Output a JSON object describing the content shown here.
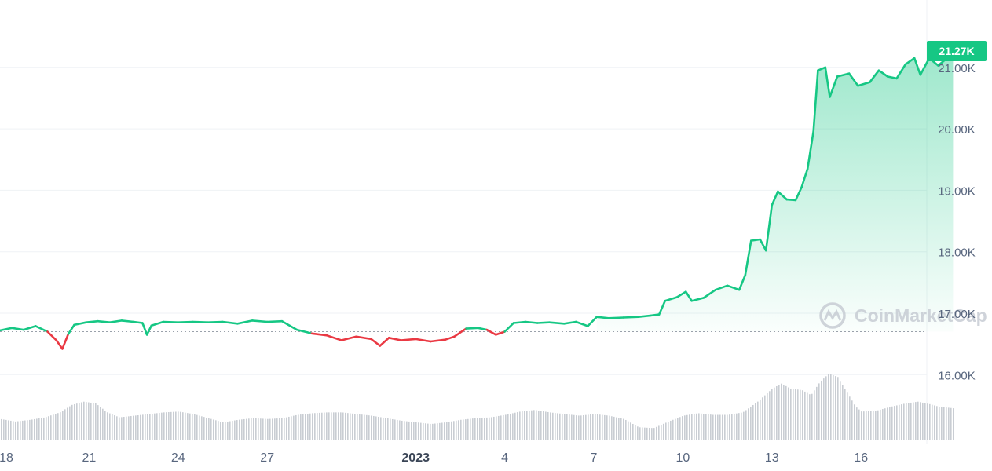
{
  "chart_data": {
    "type": "line",
    "title": "",
    "xlabel": "",
    "ylabel": "",
    "ylim": [
      15000,
      21800
    ],
    "y_ticks": [
      {
        "value": 16000,
        "label": "16.00K"
      },
      {
        "value": 17000,
        "label": "17.00K"
      },
      {
        "value": 18000,
        "label": "18.00K"
      },
      {
        "value": 19000,
        "label": "19.00K"
      },
      {
        "value": 20000,
        "label": "20.00K"
      },
      {
        "value": 21000,
        "label": "21.00K"
      }
    ],
    "x_ticks": [
      {
        "day": 0,
        "label": "18"
      },
      {
        "day": 3,
        "label": "21"
      },
      {
        "day": 6,
        "label": "24"
      },
      {
        "day": 9,
        "label": "27"
      },
      {
        "day": 14,
        "label": "2023",
        "bold": true
      },
      {
        "day": 17,
        "label": "4"
      },
      {
        "day": 20,
        "label": "7"
      },
      {
        "day": 23,
        "label": "10"
      },
      {
        "day": 26,
        "label": "13"
      },
      {
        "day": 29,
        "label": "16"
      }
    ],
    "reference_price": 16700,
    "current_price_label": "21.27K",
    "current_price": 21270,
    "colors": {
      "up": "#16c784",
      "down": "#ea3943",
      "volume": "#c9cdd3",
      "grid": "#eff2f5",
      "axis_text": "#58667e"
    },
    "series": [
      {
        "points": [
          [
            0.0,
            16720
          ],
          [
            0.4,
            16760
          ],
          [
            0.8,
            16730
          ],
          [
            1.2,
            16790
          ],
          [
            1.6,
            16700
          ],
          [
            1.9,
            16560
          ],
          [
            2.1,
            16420
          ],
          [
            2.3,
            16660
          ],
          [
            2.5,
            16810
          ],
          [
            2.9,
            16850
          ],
          [
            3.3,
            16870
          ],
          [
            3.7,
            16850
          ],
          [
            4.1,
            16880
          ],
          [
            4.5,
            16860
          ],
          [
            4.8,
            16840
          ],
          [
            4.95,
            16650
          ],
          [
            5.1,
            16800
          ],
          [
            5.5,
            16860
          ],
          [
            6.0,
            16850
          ],
          [
            6.5,
            16860
          ],
          [
            7.0,
            16850
          ],
          [
            7.5,
            16860
          ],
          [
            8.0,
            16830
          ],
          [
            8.5,
            16880
          ],
          [
            9.0,
            16860
          ],
          [
            9.5,
            16870
          ],
          [
            10.0,
            16730
          ],
          [
            10.5,
            16670
          ],
          [
            11.0,
            16640
          ],
          [
            11.5,
            16560
          ],
          [
            12.0,
            16620
          ],
          [
            12.5,
            16580
          ],
          [
            12.8,
            16470
          ],
          [
            13.1,
            16600
          ],
          [
            13.5,
            16560
          ],
          [
            14.0,
            16580
          ],
          [
            14.5,
            16540
          ],
          [
            15.0,
            16570
          ],
          [
            15.3,
            16620
          ],
          [
            15.7,
            16750
          ],
          [
            16.1,
            16760
          ],
          [
            16.4,
            16730
          ],
          [
            16.7,
            16650
          ],
          [
            17.0,
            16700
          ],
          [
            17.3,
            16840
          ],
          [
            17.7,
            16860
          ],
          [
            18.1,
            16840
          ],
          [
            18.5,
            16850
          ],
          [
            19.0,
            16830
          ],
          [
            19.4,
            16860
          ],
          [
            19.8,
            16790
          ],
          [
            20.1,
            16940
          ],
          [
            20.5,
            16920
          ],
          [
            21.0,
            16930
          ],
          [
            21.5,
            16940
          ],
          [
            21.9,
            16960
          ],
          [
            22.2,
            16980
          ],
          [
            22.4,
            17200
          ],
          [
            22.8,
            17260
          ],
          [
            23.1,
            17350
          ],
          [
            23.3,
            17200
          ],
          [
            23.7,
            17250
          ],
          [
            24.1,
            17380
          ],
          [
            24.5,
            17450
          ],
          [
            24.9,
            17380
          ],
          [
            25.1,
            17620
          ],
          [
            25.3,
            18180
          ],
          [
            25.6,
            18200
          ],
          [
            25.8,
            18020
          ],
          [
            26.0,
            18760
          ],
          [
            26.2,
            18980
          ],
          [
            26.5,
            18850
          ],
          [
            26.8,
            18840
          ],
          [
            27.0,
            19050
          ],
          [
            27.2,
            19350
          ],
          [
            27.4,
            19960
          ],
          [
            27.55,
            20950
          ],
          [
            27.8,
            21000
          ],
          [
            27.95,
            20520
          ],
          [
            28.2,
            20850
          ],
          [
            28.6,
            20900
          ],
          [
            28.9,
            20700
          ],
          [
            29.3,
            20760
          ],
          [
            29.6,
            20950
          ],
          [
            29.9,
            20850
          ],
          [
            30.2,
            20820
          ],
          [
            30.5,
            21050
          ],
          [
            30.8,
            21150
          ],
          [
            31.0,
            20880
          ],
          [
            31.3,
            21150
          ],
          [
            31.6,
            21030
          ],
          [
            31.9,
            21150
          ],
          [
            32.1,
            21270
          ]
        ]
      }
    ],
    "volume": [
      [
        0.0,
        0.25
      ],
      [
        0.5,
        0.22
      ],
      [
        1.0,
        0.24
      ],
      [
        1.5,
        0.27
      ],
      [
        2.0,
        0.33
      ],
      [
        2.4,
        0.42
      ],
      [
        2.8,
        0.46
      ],
      [
        3.2,
        0.44
      ],
      [
        3.6,
        0.33
      ],
      [
        4.0,
        0.27
      ],
      [
        4.5,
        0.29
      ],
      [
        5.0,
        0.31
      ],
      [
        5.5,
        0.33
      ],
      [
        6.0,
        0.34
      ],
      [
        6.5,
        0.31
      ],
      [
        7.0,
        0.26
      ],
      [
        7.5,
        0.21
      ],
      [
        8.0,
        0.24
      ],
      [
        8.5,
        0.26
      ],
      [
        9.0,
        0.25
      ],
      [
        9.5,
        0.26
      ],
      [
        10.0,
        0.3
      ],
      [
        10.5,
        0.32
      ],
      [
        11.0,
        0.33
      ],
      [
        11.5,
        0.33
      ],
      [
        12.0,
        0.31
      ],
      [
        12.5,
        0.29
      ],
      [
        13.0,
        0.26
      ],
      [
        13.5,
        0.23
      ],
      [
        14.0,
        0.21
      ],
      [
        14.5,
        0.19
      ],
      [
        15.0,
        0.21
      ],
      [
        15.5,
        0.24
      ],
      [
        16.0,
        0.26
      ],
      [
        16.5,
        0.27
      ],
      [
        17.0,
        0.3
      ],
      [
        17.5,
        0.34
      ],
      [
        18.0,
        0.36
      ],
      [
        18.5,
        0.33
      ],
      [
        19.0,
        0.31
      ],
      [
        19.5,
        0.29
      ],
      [
        20.0,
        0.31
      ],
      [
        20.5,
        0.29
      ],
      [
        21.0,
        0.25
      ],
      [
        21.5,
        0.15
      ],
      [
        22.0,
        0.14
      ],
      [
        22.5,
        0.22
      ],
      [
        23.0,
        0.29
      ],
      [
        23.5,
        0.32
      ],
      [
        24.0,
        0.3
      ],
      [
        24.5,
        0.3
      ],
      [
        25.0,
        0.33
      ],
      [
        25.5,
        0.46
      ],
      [
        26.0,
        0.62
      ],
      [
        26.3,
        0.68
      ],
      [
        26.6,
        0.62
      ],
      [
        27.0,
        0.6
      ],
      [
        27.3,
        0.54
      ],
      [
        27.6,
        0.7
      ],
      [
        27.9,
        0.8
      ],
      [
        28.2,
        0.76
      ],
      [
        28.5,
        0.58
      ],
      [
        28.8,
        0.4
      ],
      [
        29.0,
        0.34
      ],
      [
        29.5,
        0.35
      ],
      [
        30.0,
        0.4
      ],
      [
        30.5,
        0.44
      ],
      [
        30.9,
        0.46
      ],
      [
        31.3,
        0.43
      ],
      [
        31.6,
        0.4
      ],
      [
        32.1,
        0.38
      ]
    ]
  },
  "watermark": {
    "text": "CoinMarketCap"
  }
}
